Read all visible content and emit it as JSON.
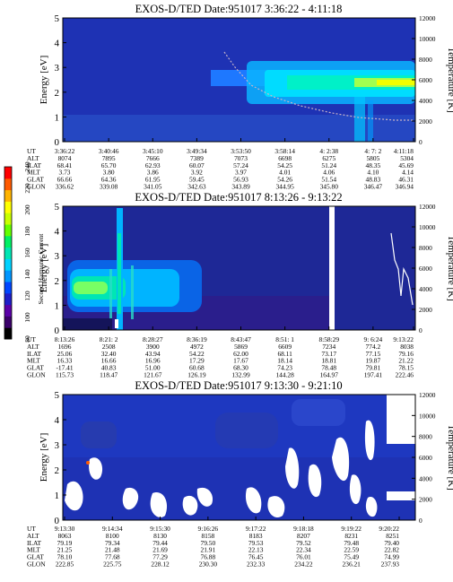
{
  "colorbar": {
    "label": "Second Harmonic Current",
    "ticks": [
      "80",
      "100",
      "120",
      "140",
      "160",
      "180",
      "200",
      "220",
      "240"
    ],
    "colors": [
      "#000000",
      "#3a006a",
      "#5a00a8",
      "#1e1ec8",
      "#0046ff",
      "#0096ff",
      "#00d2ff",
      "#00e6b4",
      "#00f064",
      "#64ff00",
      "#c8ff00",
      "#ffff00",
      "#ffb400",
      "#ff5a00",
      "#ff0000"
    ]
  },
  "chart_data": [
    {
      "type": "heatmap",
      "title": "EXOS-D/TED   Date:951017   3:36:22 - 4:11:18",
      "ylabel": "Energy [eV]",
      "y2label": "Temperature [K]",
      "ylim": [
        0,
        5
      ],
      "y2lim": [
        0,
        12000
      ],
      "yticks": [
        "0",
        "1",
        "2",
        "3",
        "4",
        "5"
      ],
      "y2ticks": [
        "0",
        "2000",
        "4000",
        "6000",
        "8000",
        "10000",
        "12000"
      ],
      "table_rows": [
        "UT",
        "ALT",
        "ILAT",
        "MLT",
        "GLAT",
        "GLON"
      ],
      "columns": [
        [
          "3:36:22",
          "8074",
          "68.41",
          "3.73",
          "66.66",
          "336.62"
        ],
        [
          "3:40:46",
          "7895",
          "65.70",
          "3.80",
          "64.36",
          "339.08"
        ],
        [
          "3:45:10",
          "7666",
          "62.93",
          "3.86",
          "61.95",
          "341.05"
        ],
        [
          "3:49:34",
          "7389",
          "60.07",
          "3.92",
          "59.45",
          "342.63"
        ],
        [
          "3:53:50",
          "7073",
          "57.24",
          "3.97",
          "56.93",
          "343.89"
        ],
        [
          "3:58:14",
          "6698",
          "54.25",
          "4.01",
          "54.26",
          "344.95"
        ],
        [
          "4: 2:38",
          "6275",
          "51.24",
          "4.06",
          "51.54",
          "345.80"
        ],
        [
          "4: 7: 2",
          "5805",
          "48.35",
          "4.10",
          "48.83",
          "346.47"
        ],
        [
          "4:11:18",
          "5304",
          "45.69",
          "4.14",
          "46.31",
          "346.94"
        ]
      ]
    },
    {
      "type": "heatmap",
      "title": "EXOS-D/TED   Date:951017   8:13:26 - 9:13:22",
      "ylabel": "Energy [eV]",
      "y2label": "Temperature [K]",
      "ylim": [
        0,
        5
      ],
      "y2lim": [
        0,
        12000
      ],
      "yticks": [
        "0",
        "1",
        "2",
        "3",
        "4",
        "5"
      ],
      "y2ticks": [
        "0",
        "2000",
        "4000",
        "6000",
        "8000",
        "10000",
        "12000"
      ],
      "table_rows": [
        "UT",
        "ALT",
        "ILAT",
        "MLT",
        "GLAT",
        "GLON"
      ],
      "columns": [
        [
          "8:13:26",
          "1696",
          "25.06",
          "16.33",
          "-17.41",
          "115.73"
        ],
        [
          "8:21: 2",
          "2508",
          "32.40",
          "16.66",
          "40.83",
          "118.47"
        ],
        [
          "8:28:27",
          "3900",
          "43.94",
          "16.96",
          "51.00",
          "121.67"
        ],
        [
          "8:36:19",
          "4972",
          "54.22",
          "17.29",
          "60.68",
          "126.19"
        ],
        [
          "8:43:47",
          "5869",
          "62.00",
          "17.67",
          "68.30",
          "132.99"
        ],
        [
          "8:51: 1",
          "6609",
          "68.11",
          "18.14",
          "74.23",
          "144.28"
        ],
        [
          "8:58:29",
          "7234",
          "73.17",
          "18.81",
          "78.48",
          "164.97"
        ],
        [
          "9: 6:24",
          "774.2",
          "77.15",
          "19.87",
          "79.81",
          "197.41"
        ],
        [
          "9:13:22",
          "8038",
          "79.16",
          "21.22",
          "78.15",
          "222.46"
        ]
      ]
    },
    {
      "type": "heatmap",
      "title": "EXOS-D/TED   Date:951017   9:13:30 - 9:21:10",
      "ylabel": "Energy [eV]",
      "y2label": "Temperature [K]",
      "ylim": [
        0,
        5
      ],
      "y2lim": [
        0,
        12000
      ],
      "yticks": [
        "0",
        "1",
        "2",
        "3",
        "4",
        "5"
      ],
      "y2ticks": [
        "0",
        "2000",
        "4000",
        "6000",
        "8000",
        "10000",
        "12000"
      ],
      "table_rows": [
        "UT",
        "ALT",
        "ILAT",
        "MLT",
        "GLAT",
        "GLON"
      ],
      "columns": [
        [
          "9:13:30",
          "8063",
          "79.19",
          "21.25",
          "78.10",
          "222.85"
        ],
        [
          "9:14:34",
          "8100",
          "79.34",
          "21.48",
          "77.68",
          "225.75"
        ],
        [
          "9:15:30",
          "8130",
          "79.44",
          "21.69",
          "77.29",
          "228.12"
        ],
        [
          "9:16:26",
          "8158",
          "79.50",
          "21.91",
          "76.88",
          "230.30"
        ],
        [
          "9:17:22",
          "8183",
          "79.53",
          "22.13",
          "76.45",
          "232.33"
        ],
        [
          "9:18:18",
          "8207",
          "79.52",
          "22.34",
          "76.01",
          "234.22"
        ],
        [
          "9:19:22",
          "8231",
          "79.48",
          "22.59",
          "75.49",
          "236.21"
        ],
        [
          "9:20:22",
          "8251",
          "79.40",
          "22.82",
          "74.99",
          "237.93"
        ]
      ]
    }
  ]
}
